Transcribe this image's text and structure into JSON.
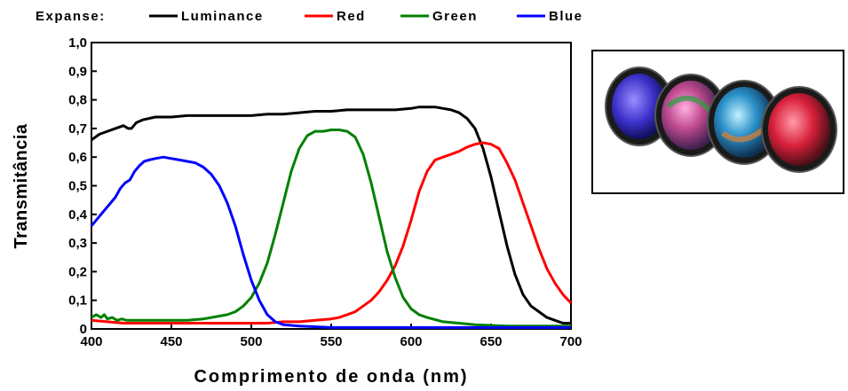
{
  "colors": {
    "luminance": "#000000",
    "red": "#ff0000",
    "green": "#008000",
    "blue": "#0000ff"
  },
  "photo": {
    "description_icon": "filter-set-photo",
    "filters": [
      {
        "tint": "#4a40d8"
      },
      {
        "tint": "#d05a9a"
      },
      {
        "tint": "#3aa0d0"
      },
      {
        "tint": "#d8203a"
      }
    ]
  },
  "chart_data": {
    "type": "line",
    "xlabel": "Comprimento de onda (nm)",
    "ylabel": "Transmitância",
    "xlim": [
      400,
      700
    ],
    "ylim": [
      0,
      1.0
    ],
    "x_ticks": [
      400,
      450,
      500,
      550,
      600,
      650,
      700
    ],
    "x_tick_labels": [
      "400",
      "450",
      "500",
      "550",
      "600",
      "650",
      "700"
    ],
    "y_ticks": [
      0,
      0.1,
      0.2,
      0.3,
      0.4,
      0.5,
      0.6,
      0.7,
      0.8,
      0.9,
      1.0
    ],
    "y_tick_labels": [
      "0",
      "0,1",
      "0,2",
      "0,3",
      "0,4",
      "0,5",
      "0,6",
      "0,7",
      "0,8",
      "0,9",
      "1,0"
    ],
    "grid": false,
    "legend": {
      "title": "Expanse:",
      "placement": "top"
    },
    "series": [
      {
        "name": "Luminance",
        "color": "#000000",
        "points": [
          [
            400,
            0.66
          ],
          [
            405,
            0.68
          ],
          [
            410,
            0.69
          ],
          [
            415,
            0.7
          ],
          [
            420,
            0.71
          ],
          [
            423,
            0.7
          ],
          [
            425,
            0.7
          ],
          [
            428,
            0.72
          ],
          [
            432,
            0.73
          ],
          [
            440,
            0.74
          ],
          [
            450,
            0.74
          ],
          [
            460,
            0.745
          ],
          [
            470,
            0.745
          ],
          [
            480,
            0.745
          ],
          [
            490,
            0.745
          ],
          [
            500,
            0.745
          ],
          [
            510,
            0.75
          ],
          [
            520,
            0.75
          ],
          [
            530,
            0.755
          ],
          [
            540,
            0.76
          ],
          [
            550,
            0.76
          ],
          [
            560,
            0.765
          ],
          [
            570,
            0.765
          ],
          [
            580,
            0.765
          ],
          [
            590,
            0.765
          ],
          [
            600,
            0.77
          ],
          [
            605,
            0.775
          ],
          [
            610,
            0.775
          ],
          [
            615,
            0.775
          ],
          [
            620,
            0.77
          ],
          [
            625,
            0.765
          ],
          [
            630,
            0.755
          ],
          [
            635,
            0.735
          ],
          [
            640,
            0.7
          ],
          [
            645,
            0.63
          ],
          [
            650,
            0.53
          ],
          [
            655,
            0.41
          ],
          [
            660,
            0.29
          ],
          [
            665,
            0.19
          ],
          [
            670,
            0.12
          ],
          [
            675,
            0.08
          ],
          [
            680,
            0.06
          ],
          [
            685,
            0.04
          ],
          [
            690,
            0.03
          ],
          [
            695,
            0.02
          ],
          [
            700,
            0.02
          ]
        ]
      },
      {
        "name": "Red",
        "color": "#ff0000",
        "points": [
          [
            400,
            0.03
          ],
          [
            410,
            0.025
          ],
          [
            420,
            0.02
          ],
          [
            430,
            0.02
          ],
          [
            440,
            0.02
          ],
          [
            450,
            0.02
          ],
          [
            460,
            0.02
          ],
          [
            470,
            0.02
          ],
          [
            480,
            0.02
          ],
          [
            490,
            0.02
          ],
          [
            500,
            0.02
          ],
          [
            510,
            0.02
          ],
          [
            520,
            0.025
          ],
          [
            530,
            0.025
          ],
          [
            540,
            0.03
          ],
          [
            550,
            0.035
          ],
          [
            555,
            0.04
          ],
          [
            560,
            0.05
          ],
          [
            565,
            0.06
          ],
          [
            570,
            0.08
          ],
          [
            575,
            0.1
          ],
          [
            580,
            0.13
          ],
          [
            585,
            0.17
          ],
          [
            590,
            0.22
          ],
          [
            595,
            0.29
          ],
          [
            600,
            0.38
          ],
          [
            605,
            0.48
          ],
          [
            610,
            0.55
          ],
          [
            615,
            0.59
          ],
          [
            620,
            0.6
          ],
          [
            625,
            0.61
          ],
          [
            630,
            0.62
          ],
          [
            635,
            0.635
          ],
          [
            640,
            0.645
          ],
          [
            645,
            0.65
          ],
          [
            650,
            0.645
          ],
          [
            655,
            0.63
          ],
          [
            660,
            0.58
          ],
          [
            665,
            0.52
          ],
          [
            670,
            0.44
          ],
          [
            675,
            0.36
          ],
          [
            680,
            0.28
          ],
          [
            685,
            0.21
          ],
          [
            690,
            0.16
          ],
          [
            695,
            0.12
          ],
          [
            700,
            0.09
          ]
        ]
      },
      {
        "name": "Green",
        "color": "#008000",
        "points": [
          [
            400,
            0.04
          ],
          [
            403,
            0.05
          ],
          [
            406,
            0.04
          ],
          [
            408,
            0.05
          ],
          [
            410,
            0.035
          ],
          [
            413,
            0.04
          ],
          [
            416,
            0.03
          ],
          [
            419,
            0.035
          ],
          [
            422,
            0.03
          ],
          [
            425,
            0.03
          ],
          [
            430,
            0.03
          ],
          [
            440,
            0.03
          ],
          [
            450,
            0.03
          ],
          [
            460,
            0.03
          ],
          [
            470,
            0.035
          ],
          [
            475,
            0.04
          ],
          [
            480,
            0.045
          ],
          [
            485,
            0.05
          ],
          [
            490,
            0.06
          ],
          [
            495,
            0.08
          ],
          [
            500,
            0.11
          ],
          [
            505,
            0.16
          ],
          [
            510,
            0.23
          ],
          [
            515,
            0.33
          ],
          [
            520,
            0.44
          ],
          [
            525,
            0.55
          ],
          [
            530,
            0.63
          ],
          [
            535,
            0.675
          ],
          [
            540,
            0.69
          ],
          [
            545,
            0.69
          ],
          [
            550,
            0.695
          ],
          [
            555,
            0.695
          ],
          [
            560,
            0.69
          ],
          [
            565,
            0.67
          ],
          [
            570,
            0.61
          ],
          [
            575,
            0.51
          ],
          [
            580,
            0.39
          ],
          [
            585,
            0.27
          ],
          [
            590,
            0.18
          ],
          [
            595,
            0.11
          ],
          [
            600,
            0.07
          ],
          [
            605,
            0.05
          ],
          [
            610,
            0.04
          ],
          [
            620,
            0.025
          ],
          [
            630,
            0.02
          ],
          [
            640,
            0.015
          ],
          [
            660,
            0.01
          ],
          [
            680,
            0.01
          ],
          [
            700,
            0.01
          ]
        ]
      },
      {
        "name": "Blue",
        "color": "#0000ff",
        "points": [
          [
            400,
            0.36
          ],
          [
            403,
            0.38
          ],
          [
            406,
            0.4
          ],
          [
            409,
            0.42
          ],
          [
            412,
            0.44
          ],
          [
            415,
            0.46
          ],
          [
            418,
            0.49
          ],
          [
            421,
            0.51
          ],
          [
            424,
            0.52
          ],
          [
            427,
            0.55
          ],
          [
            430,
            0.57
          ],
          [
            433,
            0.585
          ],
          [
            436,
            0.59
          ],
          [
            440,
            0.595
          ],
          [
            445,
            0.6
          ],
          [
            450,
            0.595
          ],
          [
            455,
            0.59
          ],
          [
            460,
            0.585
          ],
          [
            465,
            0.58
          ],
          [
            470,
            0.565
          ],
          [
            475,
            0.54
          ],
          [
            480,
            0.5
          ],
          [
            485,
            0.44
          ],
          [
            490,
            0.36
          ],
          [
            495,
            0.26
          ],
          [
            500,
            0.17
          ],
          [
            505,
            0.1
          ],
          [
            510,
            0.05
          ],
          [
            515,
            0.025
          ],
          [
            520,
            0.015
          ],
          [
            530,
            0.01
          ],
          [
            550,
            0.005
          ],
          [
            600,
            0.005
          ],
          [
            650,
            0.005
          ],
          [
            700,
            0.005
          ]
        ]
      }
    ]
  }
}
